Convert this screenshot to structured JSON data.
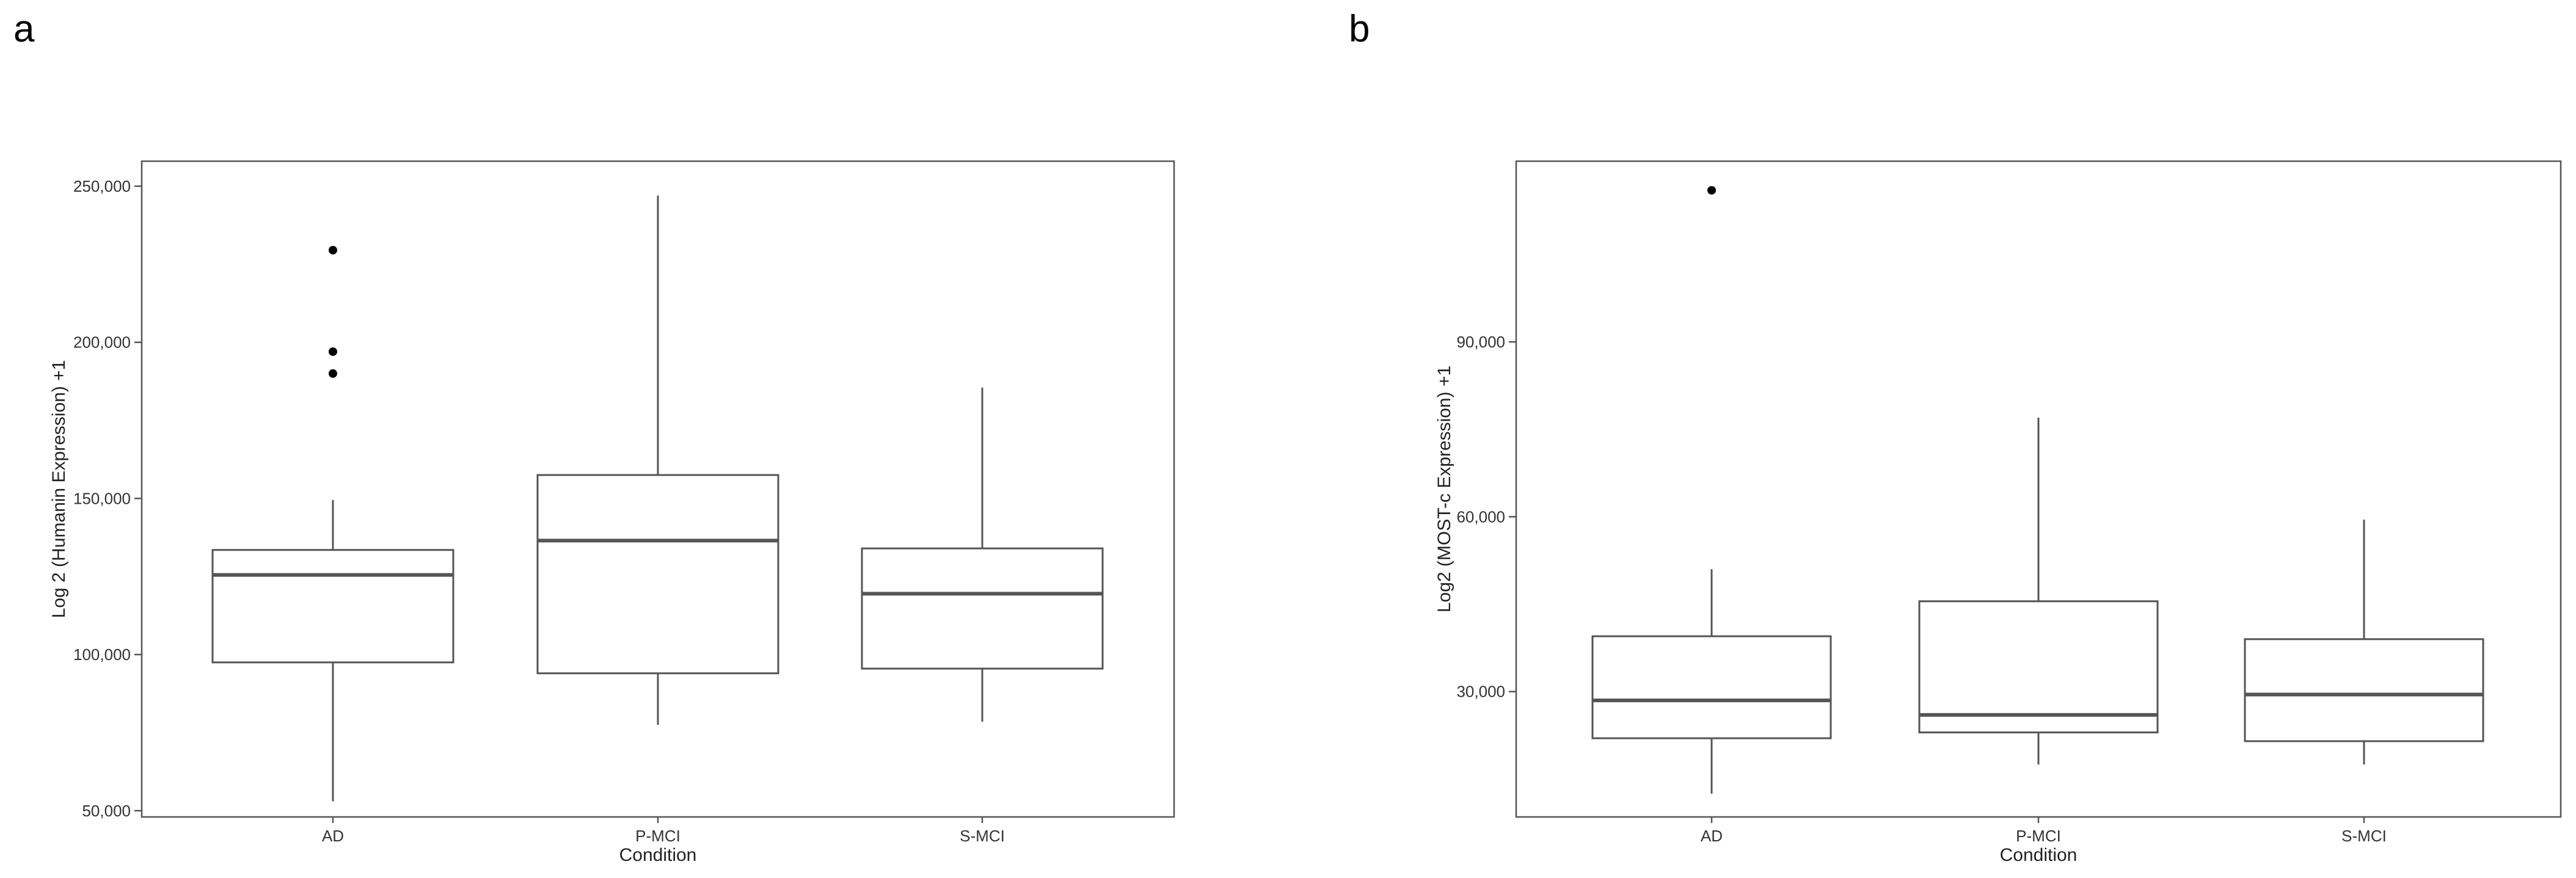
{
  "chart_data": [
    {
      "type": "box",
      "panel_label": "a",
      "xlabel": "Condition",
      "ylabel": "Log 2 (Humanin Expression) +1",
      "categories": [
        "AD",
        "P-MCI",
        "S-MCI"
      ],
      "ylim": [
        48000,
        258000
      ],
      "yticks": [
        50000,
        100000,
        150000,
        200000,
        250000
      ],
      "ytick_labels": [
        "50,000",
        "100,000",
        "150,000",
        "200,000",
        "250,000"
      ],
      "grid": false,
      "boxes": [
        {
          "category": "AD",
          "whisker_low": 53000,
          "q1": 97500,
          "median": 125500,
          "q3": 133500,
          "whisker_high": 149500,
          "outliers": [
            190000,
            197000,
            229500
          ]
        },
        {
          "category": "P-MCI",
          "whisker_low": 77500,
          "q1": 94000,
          "median": 136500,
          "q3": 157500,
          "whisker_high": 247000,
          "outliers": []
        },
        {
          "category": "S-MCI",
          "whisker_low": 78500,
          "q1": 95500,
          "median": 119500,
          "q3": 134000,
          "whisker_high": 185500,
          "outliers": []
        }
      ]
    },
    {
      "type": "box",
      "panel_label": "b",
      "xlabel": "Condition",
      "ylabel": "Log2 (MOST-c Expression) +1",
      "categories": [
        "AD",
        "P-MCI",
        "S-MCI"
      ],
      "ylim": [
        8500,
        121000
      ],
      "yticks": [
        30000,
        60000,
        90000
      ],
      "ytick_labels": [
        "30,000",
        "60,000",
        "90,000"
      ],
      "grid": false,
      "boxes": [
        {
          "category": "AD",
          "whisker_low": 12500,
          "q1": 22000,
          "median": 28500,
          "q3": 39500,
          "whisker_high": 51000,
          "outliers": [
            116000
          ]
        },
        {
          "category": "P-MCI",
          "whisker_low": 17500,
          "q1": 23000,
          "median": 26000,
          "q3": 45500,
          "whisker_high": 77000,
          "outliers": []
        },
        {
          "category": "S-MCI",
          "whisker_low": 17500,
          "q1": 21500,
          "median": 29500,
          "q3": 39000,
          "whisker_high": 59500,
          "outliers": []
        }
      ]
    }
  ]
}
